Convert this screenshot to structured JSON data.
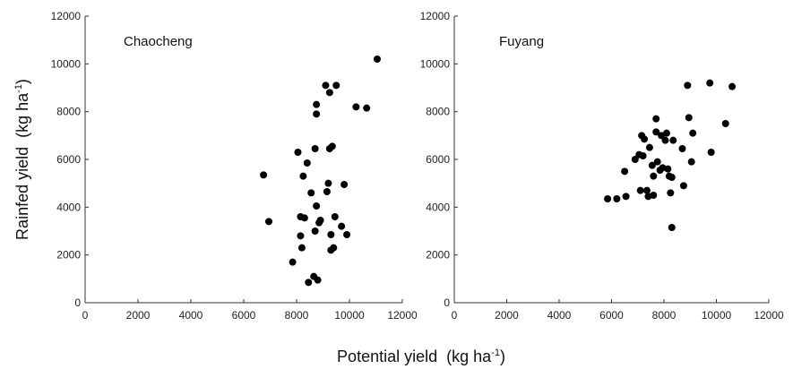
{
  "chart_data": {
    "type": "scatter",
    "ylabel": "Rainfed yield",
    "ylabel_unit": "(kg ha",
    "xlabel": "Potential yield",
    "xlabel_unit": "(kg ha",
    "unit_exponent": "-1",
    "unit_close": ")",
    "grid": false,
    "marker_color": "#000000",
    "panels": [
      {
        "title": "Chaocheng",
        "xlim": [
          0,
          12000
        ],
        "ylim": [
          0,
          12000
        ],
        "xticks": [
          0,
          2000,
          4000,
          6000,
          8000,
          10000,
          12000
        ],
        "yticks": [
          0,
          2000,
          4000,
          6000,
          8000,
          10000,
          12000
        ],
        "points": [
          [
            6750,
            5350
          ],
          [
            6950,
            3400
          ],
          [
            7850,
            1700
          ],
          [
            8050,
            6300
          ],
          [
            8150,
            3600
          ],
          [
            8150,
            2800
          ],
          [
            8200,
            2300
          ],
          [
            8250,
            5300
          ],
          [
            8300,
            3550
          ],
          [
            8400,
            5850
          ],
          [
            8450,
            850
          ],
          [
            8550,
            4600
          ],
          [
            8650,
            1100
          ],
          [
            8700,
            6450
          ],
          [
            8700,
            3000
          ],
          [
            8750,
            8300
          ],
          [
            8750,
            7900
          ],
          [
            8750,
            4050
          ],
          [
            8800,
            950
          ],
          [
            8850,
            3350
          ],
          [
            8900,
            3450
          ],
          [
            9100,
            9100
          ],
          [
            9150,
            4650
          ],
          [
            9200,
            5000
          ],
          [
            9250,
            8800
          ],
          [
            9250,
            6450
          ],
          [
            9300,
            2850
          ],
          [
            9300,
            2200
          ],
          [
            9350,
            6550
          ],
          [
            9400,
            2300
          ],
          [
            9450,
            3600
          ],
          [
            9500,
            9100
          ],
          [
            9700,
            3200
          ],
          [
            9800,
            4950
          ],
          [
            9900,
            2850
          ],
          [
            10250,
            8200
          ],
          [
            10650,
            8150
          ],
          [
            11050,
            10200
          ]
        ]
      },
      {
        "title": "Fuyang",
        "xlim": [
          0,
          12000
        ],
        "ylim": [
          0,
          12000
        ],
        "xticks": [
          0,
          2000,
          4000,
          6000,
          8000,
          10000,
          12000
        ],
        "yticks": [
          0,
          2000,
          4000,
          6000,
          8000,
          10000,
          12000
        ],
        "points": [
          [
            5850,
            4350
          ],
          [
            6200,
            4350
          ],
          [
            6500,
            5500
          ],
          [
            6550,
            4450
          ],
          [
            6900,
            6000
          ],
          [
            7050,
            6200
          ],
          [
            7100,
            4700
          ],
          [
            7150,
            7000
          ],
          [
            7200,
            6150
          ],
          [
            7250,
            6850
          ],
          [
            7350,
            4700
          ],
          [
            7400,
            4450
          ],
          [
            7450,
            6500
          ],
          [
            7550,
            5750
          ],
          [
            7600,
            5300
          ],
          [
            7600,
            4500
          ],
          [
            7700,
            7700
          ],
          [
            7700,
            7150
          ],
          [
            7750,
            5900
          ],
          [
            7850,
            5550
          ],
          [
            7900,
            7000
          ],
          [
            7950,
            5650
          ],
          [
            8050,
            6800
          ],
          [
            8100,
            7100
          ],
          [
            8150,
            5600
          ],
          [
            8200,
            5300
          ],
          [
            8250,
            4600
          ],
          [
            8300,
            3150
          ],
          [
            8300,
            5250
          ],
          [
            8350,
            6800
          ],
          [
            8700,
            6450
          ],
          [
            8750,
            4900
          ],
          [
            8900,
            9100
          ],
          [
            8950,
            7750
          ],
          [
            9050,
            5900
          ],
          [
            9100,
            7100
          ],
          [
            9750,
            9200
          ],
          [
            9800,
            6300
          ],
          [
            10350,
            7500
          ],
          [
            10600,
            9050
          ]
        ]
      }
    ]
  }
}
